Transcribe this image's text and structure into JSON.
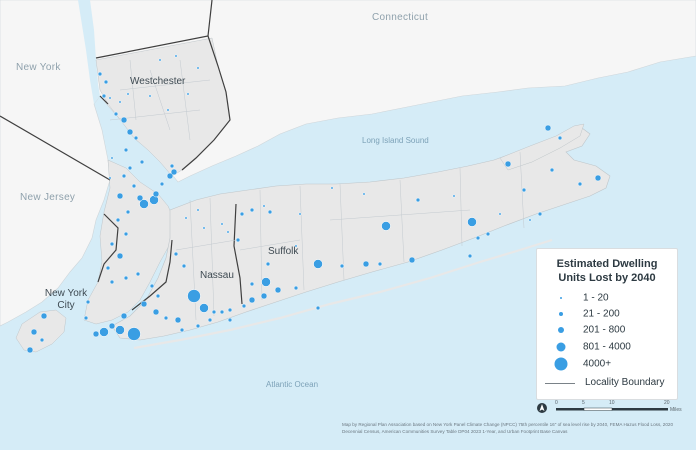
{
  "labels": {
    "connecticut": "Connecticut",
    "new_york": "New York",
    "new_jersey": "New Jersey",
    "westchester": "Westchester",
    "suffolk": "Suffolk",
    "nassau": "Nassau",
    "new_york_city": "New York City",
    "long_island_sound": "Long Island Sound",
    "atlantic_ocean": "Atlantic Ocean"
  },
  "legend": {
    "title_line1": "Estimated Dwelling",
    "title_line2": "Units Lost by 2040",
    "classes": [
      {
        "label": "1 - 20"
      },
      {
        "label": "21 - 200"
      },
      {
        "label": "201 - 800"
      },
      {
        "label": "801 - 4000"
      },
      {
        "label": "4000+"
      }
    ],
    "boundary_label": "Locality Boundary"
  },
  "scale": {
    "ticks": [
      "0",
      "5",
      "10",
      "20"
    ],
    "unit": "Miles"
  },
  "credit": "Map by Regional Plan Association based on New York Panel Climate Change (NPCC) 75th percentile 16\" of sea level rise by 2040, FEMA Hazus Flood Loss, 2020 Decennial Census, American Communities Survey Table DP04 2023 1-Year, and Urban Footprint Base Canvas",
  "colors": {
    "water": "#d5ecf7",
    "land": "#f6f6f6",
    "study_area": "#e8e8e8",
    "dot": "#3a9ee3",
    "county_boundary": "#3f3f3f"
  }
}
